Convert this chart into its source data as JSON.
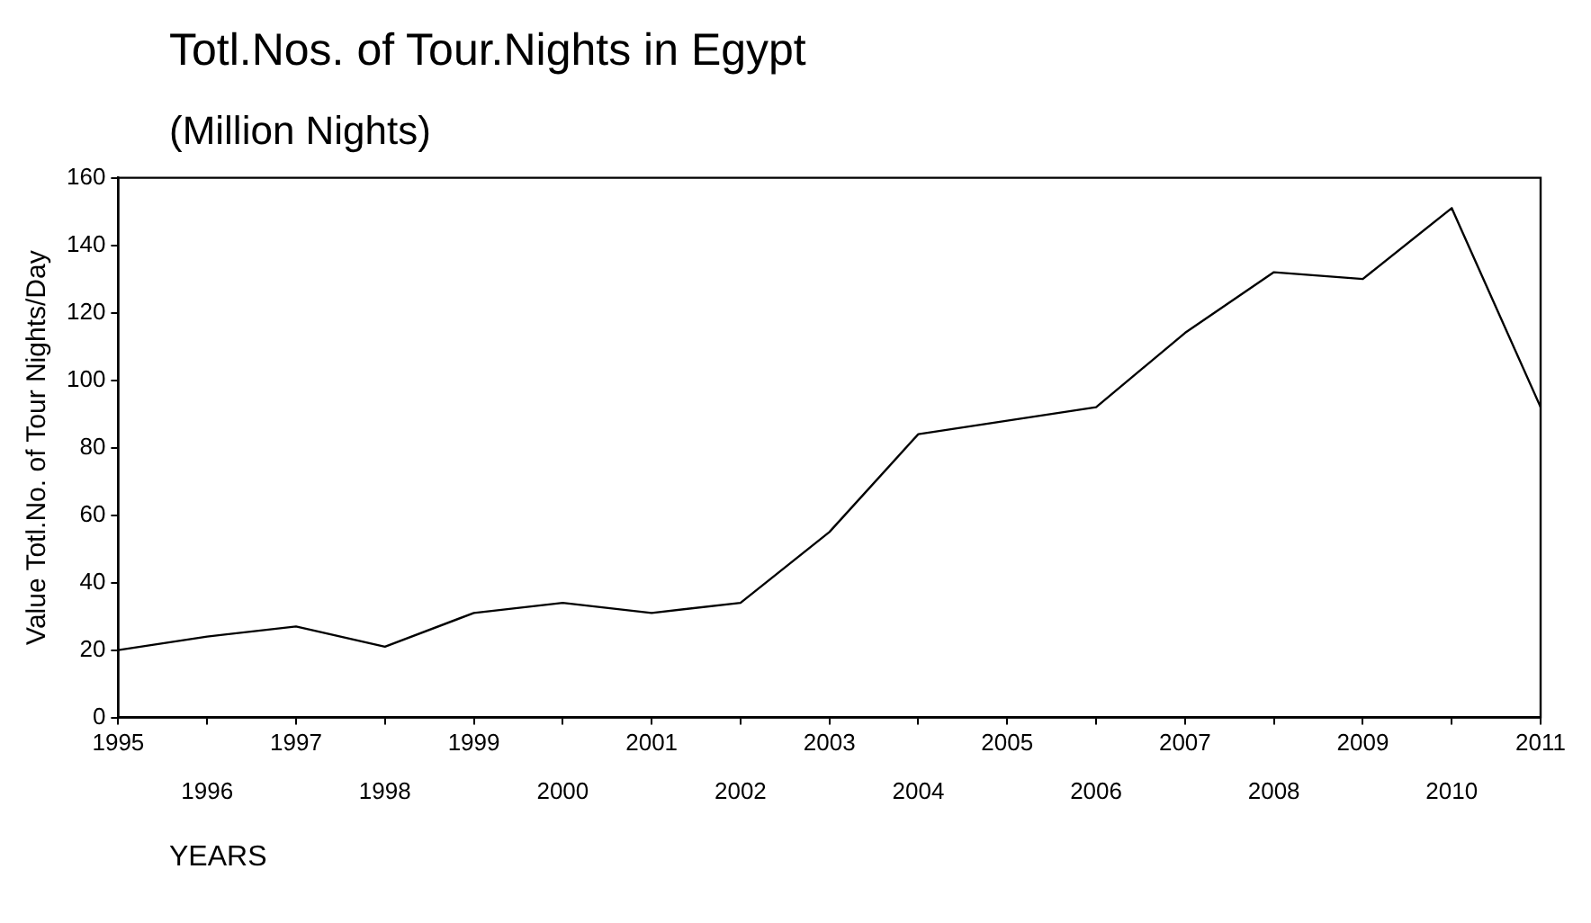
{
  "chart_data": {
    "type": "line",
    "title": "Totl.Nos. of Tour.Nights in Egypt",
    "subtitle": "(Million Nights)",
    "xlabel": "YEARS",
    "ylabel": "Value Totl.No. of Tour Nights/Day",
    "x": [
      1995,
      1996,
      1997,
      1998,
      1999,
      2000,
      2001,
      2002,
      2003,
      2004,
      2005,
      2006,
      2007,
      2008,
      2009,
      2010,
      2011
    ],
    "series": [
      {
        "color": "#000000",
        "values": [
          20,
          24,
          27,
          21,
          31,
          34,
          31,
          34,
          55,
          84,
          88,
          92,
          114,
          132,
          130,
          151,
          92
        ]
      }
    ],
    "xlim": [
      1995,
      2011
    ],
    "xticks": [
      1995,
      {
        "value": 1996,
        "label": null
      },
      1997,
      {
        "value": 1998,
        "label": null
      },
      1999,
      {
        "value": 2000,
        "label": null
      },
      2001,
      {
        "value": 2002,
        "label": null
      },
      2003,
      {
        "value": 2004,
        "label": null
      },
      2005,
      {
        "value": 2006,
        "label": null
      },
      2007,
      {
        "value": 2008,
        "label": null
      },
      2009,
      {
        "value": 2010,
        "label": null
      },
      2011
    ],
    "x2lim": [
      1995,
      2011
    ],
    "x2ticks": [
      1996,
      1998,
      2000,
      2002,
      2004,
      2006,
      2008,
      2010
    ],
    "ylim": [
      0,
      160
    ],
    "yticks": [
      0,
      20,
      40,
      60,
      80,
      100,
      120,
      140,
      160
    ],
    "grid": false,
    "legend": false,
    "marker": "none",
    "line_style": "solid"
  }
}
